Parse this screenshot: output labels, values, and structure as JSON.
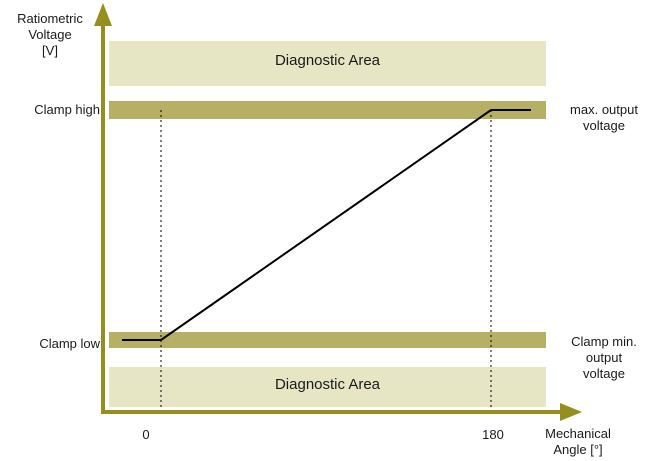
{
  "y_axis_label": [
    "Ratiometric",
    "Voltage",
    "[V]"
  ],
  "x_axis_label": [
    "Mechanical",
    "Angle [°]"
  ],
  "diagnostic_area_top": "Diagnostic Area",
  "diagnostic_area_bottom": "Diagnostic Area",
  "clamp_high_label": "Clamp high",
  "clamp_low_label": "Clamp low",
  "max_output_note": [
    "max. output",
    "voltage"
  ],
  "min_output_note": [
    "Clamp min.",
    "output",
    "voltage"
  ],
  "x_tick_start": "0",
  "x_tick_end": "180",
  "colors": {
    "band_light": "#e6e6c5",
    "band_dark": "#b5b065",
    "axis": "#958f1e",
    "line": "#000000"
  }
}
